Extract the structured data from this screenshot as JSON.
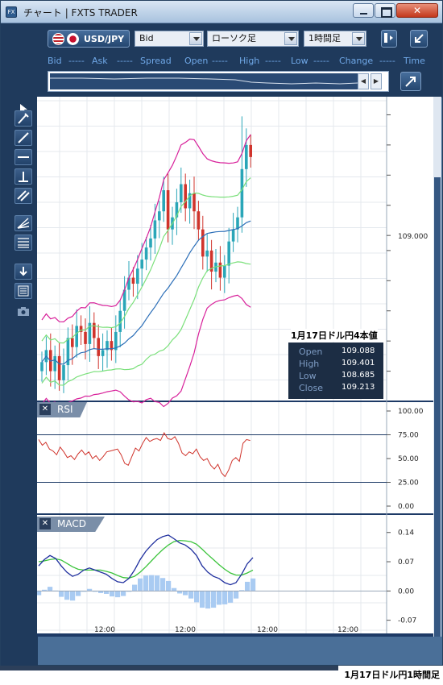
{
  "window": {
    "title": "チャート | FXTS TRADER",
    "app_icon": "FX",
    "close_glyph": "✕"
  },
  "toolbar": {
    "add_label": "+",
    "symbol": "USD/JPY",
    "price_type": "Bid",
    "chart_type": "ローソク足",
    "timeframe": "1時間足"
  },
  "quote_header": {
    "bid": "Bid",
    "ask": "Ask",
    "spread": "Spread",
    "open": "Open",
    "high": "High",
    "low": "Low",
    "change": "Change",
    "time": "Time",
    "placeholder": "-----"
  },
  "ohlc_info": {
    "title": "1月17日ドル円4本値",
    "rows": [
      {
        "label": "Open",
        "value": "109.088"
      },
      {
        "label": "High",
        "value": "109.401"
      },
      {
        "label": "Low",
        "value": "108.685"
      },
      {
        "label": "Close",
        "value": "109.213"
      }
    ]
  },
  "price_axis": {
    "label": "109.000"
  },
  "rsi_panel": {
    "name": "RSI",
    "ticks": [
      "100.00",
      "75.00",
      "50.00",
      "25.00",
      "0.00"
    ]
  },
  "macd_panel": {
    "name": "MACD",
    "ticks": [
      "0.14",
      "0.07",
      "0.00",
      "-0.07"
    ]
  },
  "time_axis": {
    "labels": [
      "12:00",
      "12:00",
      "12:00",
      "12:00"
    ]
  },
  "caption": "1月17日ドル円1時間足",
  "colors": {
    "candle_up": "#2aa6b8",
    "candle_down": "#d0342c",
    "bollinger_outer": "#d8209a",
    "bollinger_inner": "#7be07b",
    "moving_average": "#2c6fb8",
    "rsi_line": "#d0342c",
    "macd_line": "#1f2f9e",
    "signal_line": "#3cc43c",
    "histogram": "#a9cbf2"
  },
  "chart_data": [
    {
      "type": "candlestick",
      "title": "",
      "series": [
        {
          "name": "",
          "values": [
            108.58,
            108.62,
            108.55,
            108.6,
            108.52,
            108.57,
            108.66,
            108.63,
            108.7,
            108.68,
            108.64,
            108.71,
            108.66,
            108.6,
            108.62,
            108.65,
            108.62,
            108.68,
            108.75,
            108.82,
            108.86,
            108.84,
            108.89,
            108.92,
            108.96,
            108.99,
            109.05,
            109.08,
            109.15,
            109.02,
            109.06,
            109.11,
            109.17,
            109.09,
            109.14,
            109.08,
            109.02,
            108.93,
            108.95,
            108.88,
            108.91,
            108.86,
            108.9,
            108.98,
            109.02,
            109.06,
            109.22,
            109.3,
            109.26
          ]
        }
      ],
      "ylim": [
        108.45,
        109.46
      ],
      "ytick_labels": [
        "109.000"
      ]
    },
    {
      "type": "line",
      "title": "RSI",
      "series": [
        {
          "name": "RSI",
          "values": [
            70,
            64,
            67,
            60,
            58,
            54,
            62,
            57,
            51,
            53,
            49,
            55,
            59,
            54,
            57,
            50,
            53,
            48,
            52,
            57,
            58,
            59,
            60,
            54,
            45,
            43,
            52,
            61,
            58,
            66,
            72,
            68,
            70,
            71,
            69,
            77,
            71,
            70,
            73,
            66,
            56,
            53,
            57,
            55,
            60,
            52,
            48,
            50,
            43,
            39,
            44,
            35,
            31,
            38,
            48,
            51,
            47,
            66,
            70,
            69
          ]
        }
      ],
      "ylim": [
        0,
        100
      ],
      "ytick_labels": [
        "100.00",
        "75.00",
        "50.00",
        "25.00",
        "0.00"
      ]
    },
    {
      "type": "line",
      "title": "MACD",
      "series": [
        {
          "name": "MACD",
          "values": [
            0.06,
            0.075,
            0.085,
            0.078,
            0.06,
            0.045,
            0.035,
            0.04,
            0.05,
            0.055,
            0.05,
            0.045,
            0.04,
            0.03,
            0.022,
            0.02,
            0.03,
            0.05,
            0.075,
            0.095,
            0.11,
            0.123,
            0.13,
            0.134,
            0.125,
            0.115,
            0.11,
            0.1,
            0.085,
            0.06,
            0.045,
            0.035,
            0.03,
            0.02,
            0.015,
            0.02,
            0.04,
            0.065,
            0.08
          ]
        },
        {
          "name": "Signal",
          "values": [
            0.07,
            0.072,
            0.075,
            0.077,
            0.074,
            0.066,
            0.058,
            0.052,
            0.05,
            0.05,
            0.05,
            0.05,
            0.047,
            0.043,
            0.037,
            0.032,
            0.031,
            0.035,
            0.045,
            0.058,
            0.072,
            0.086,
            0.099,
            0.11,
            0.118,
            0.121,
            0.12,
            0.118,
            0.112,
            0.1,
            0.087,
            0.075,
            0.063,
            0.052,
            0.043,
            0.038,
            0.038,
            0.043,
            0.05
          ]
        },
        {
          "name": "Histogram",
          "values": [
            -0.01,
            0.003,
            0.01,
            0.001,
            -0.014,
            -0.021,
            -0.023,
            -0.012,
            0,
            0.005,
            0,
            -0.005,
            -0.007,
            -0.013,
            -0.015,
            -0.012,
            -0.001,
            0.015,
            0.03,
            0.037,
            0.038,
            0.037,
            0.031,
            0.024,
            0.007,
            -0.006,
            -0.01,
            -0.018,
            -0.027,
            -0.04,
            -0.042,
            -0.04,
            -0.033,
            -0.032,
            -0.028,
            -0.018,
            0.002,
            0.022,
            0.03
          ]
        }
      ],
      "ylim": [
        -0.09,
        0.18
      ],
      "ytick_labels": [
        "0.14",
        "0.07",
        "0.00",
        "-0.07"
      ]
    }
  ]
}
